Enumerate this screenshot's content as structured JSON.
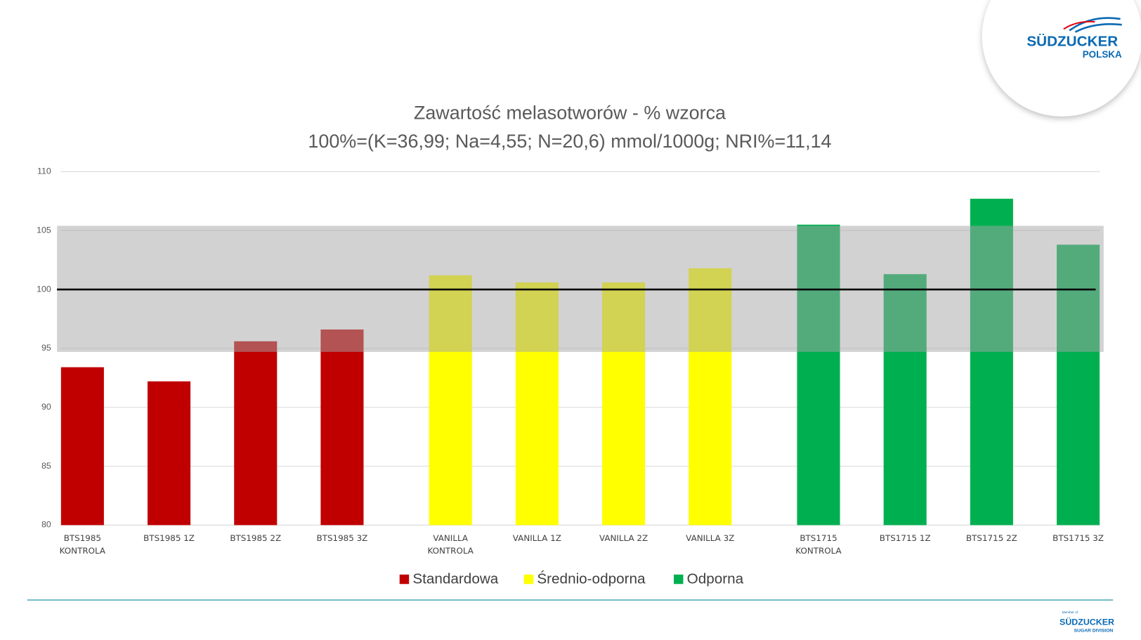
{
  "chart_data": {
    "type": "bar",
    "title": "Zawartość melasotworów - % wzorca",
    "subtitle": "100%=(K=36,99; Na=4,55; N=20,6) mmol/1000g; NRI%=11,14",
    "categories": [
      "BTS1985 KONTROLA",
      "BTS1985 1Z",
      "BTS1985 2Z",
      "BTS1985 3Z",
      "VANILLA KONTROLA",
      "VANILLA 1Z",
      "VANILLA 2Z",
      "VANILLA 3Z",
      "BTS1715 KONTROLA",
      "BTS1715 1Z",
      "BTS1715 2Z",
      "BTS1715 3Z"
    ],
    "series": [
      {
        "name": "Standardowa",
        "color": "#c00000",
        "values": [
          93.4,
          92.2,
          95.6,
          96.6,
          null,
          null,
          null,
          null,
          null,
          null,
          null,
          null
        ]
      },
      {
        "name": "Średnio-odporna",
        "color": "#ffff00",
        "values": [
          null,
          null,
          null,
          null,
          101.2,
          100.6,
          100.6,
          101.8,
          null,
          null,
          null,
          null
        ]
      },
      {
        "name": "Odporna",
        "color": "#00b050",
        "values": [
          null,
          null,
          null,
          null,
          null,
          null,
          null,
          null,
          105.5,
          101.3,
          107.7,
          103.8
        ]
      }
    ],
    "ylim": [
      80,
      110
    ],
    "yticks": [
      80,
      85,
      90,
      95,
      100,
      105,
      110
    ],
    "grid": true,
    "band": [
      94.7,
      105.4
    ],
    "reference_line": 100,
    "legend": "bottom"
  },
  "logo": {
    "name": "SÜDZUCKER",
    "sub": "POLSKA"
  },
  "footer_logo": {
    "member": "Member of",
    "name": "SÜDZUCKER",
    "division": "SUGAR DIVISION"
  }
}
